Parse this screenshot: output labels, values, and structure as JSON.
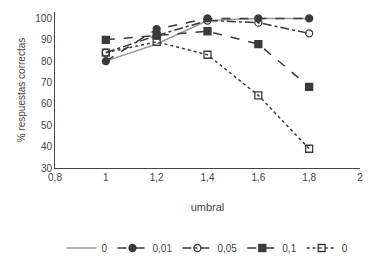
{
  "chart_data": {
    "type": "line",
    "xlabel": "umbral",
    "ylabel": "% respuestas correctas",
    "x": [
      1.0,
      1.2,
      1.4,
      1.6,
      1.8
    ],
    "series": [
      {
        "name": "0",
        "color": "#999999",
        "marker": "none",
        "line_style": "solid",
        "values": [
          80,
          88,
          99,
          100,
          100
        ]
      },
      {
        "name": "0,01",
        "color": "#3a3a3a",
        "marker": "circle",
        "line_style": "dash",
        "values": [
          80,
          95,
          100,
          100,
          100
        ]
      },
      {
        "name": "0,05",
        "color": "#3a3a3a",
        "marker": "circle-open",
        "line_style": "dashdot",
        "values": [
          84,
          92,
          99,
          98,
          93
        ]
      },
      {
        "name": "0,1",
        "color": "#3a3a3a",
        "marker": "square",
        "line_style": "dash",
        "values": [
          90,
          92,
          94,
          88,
          68
        ]
      },
      {
        "name": "0",
        "color": "#3a3a3a",
        "marker": "square-open",
        "line_style": "dot",
        "values": [
          84,
          89,
          83,
          64,
          39
        ]
      }
    ],
    "xlim": [
      0.8,
      2.0
    ],
    "ylim": [
      30,
      103
    ],
    "xticks": [
      {
        "value": 0.8,
        "label": "0,8"
      },
      1,
      {
        "value": 1.2,
        "label": "1,2"
      },
      {
        "value": 1.4,
        "label": "1,4"
      },
      {
        "value": 1.6,
        "label": "1,6"
      },
      {
        "value": 1.8,
        "label": "1,8"
      },
      2
    ],
    "yticks": [
      30,
      40,
      50,
      60,
      70,
      80,
      90,
      100
    ],
    "grid": false,
    "legend": "bottom"
  }
}
